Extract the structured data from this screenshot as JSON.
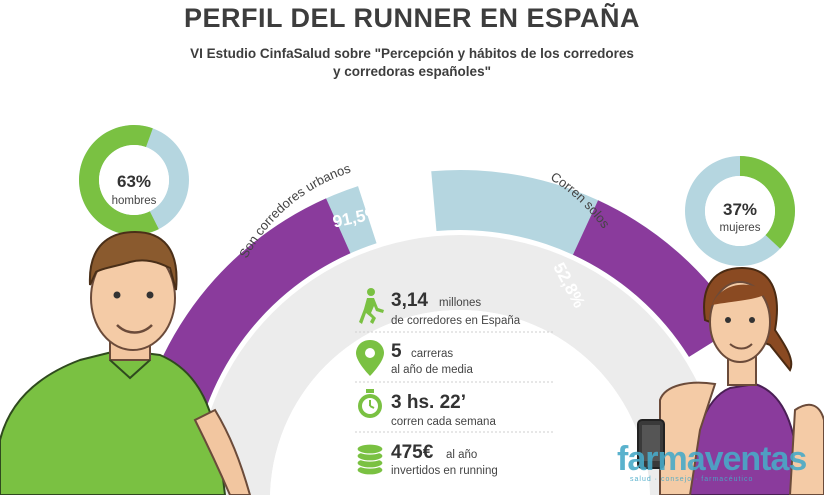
{
  "header": {
    "title": "PERFIL DEL RUNNER EN ESPAÑA",
    "subtitle_line1": "VI Estudio CinfaSalud sobre \"Percepción y hábitos de los corredores",
    "subtitle_line2": "y corredoras españoles\""
  },
  "colors": {
    "green": "#7ac142",
    "light_blue": "#b5d6e0",
    "purple": "#8a3b9c",
    "background_arc": "#ececec",
    "text": "#3a3a3a"
  },
  "chart_data": [
    {
      "type": "pie",
      "label": "hombres",
      "value": 63,
      "display": "63%",
      "remainder": 37
    },
    {
      "type": "pie",
      "label": "mujeres",
      "value": 37,
      "display": "37%",
      "remainder": 63
    },
    {
      "type": "bar",
      "label": "Son corredores urbanos",
      "value": 91.5,
      "display": "91,5%"
    },
    {
      "type": "bar",
      "label": "Corren solos",
      "value": 52.8,
      "display": "52,8%"
    }
  ],
  "stats": [
    {
      "icon": "runner-icon",
      "value": "3,14",
      "text1": "millones",
      "text2": "de corredores en España"
    },
    {
      "icon": "location-pin-icon",
      "value": "5",
      "text1": "carreras",
      "text2": "al año de media"
    },
    {
      "icon": "stopwatch-icon",
      "value": "3 hs. 22’",
      "text1": "",
      "text2": "corren cada semana"
    },
    {
      "icon": "coins-icon",
      "value": "475€",
      "text1": "al año",
      "text2": "invertidos en running"
    }
  ],
  "watermark": {
    "brand": "farmaventas",
    "tagline": "salud · consejo · farmacéutico"
  }
}
